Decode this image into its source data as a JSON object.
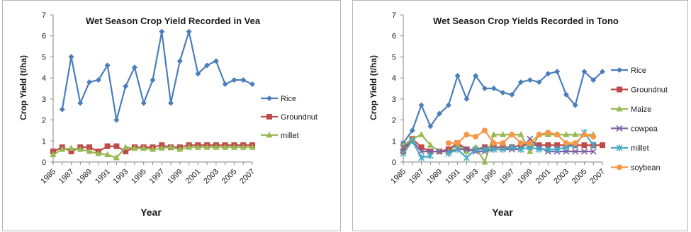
{
  "colors": {
    "rice": "#4a7ebb",
    "groundnut": "#be4b48",
    "maize": "#98b954",
    "cowpea": "#7d60a0",
    "millet_left": "#98b954",
    "millet_right": "#46aac5",
    "soybean": "#f79646"
  },
  "chart_data": [
    {
      "type": "line",
      "title": "Wet Season Crop Yield Recorded in Vea",
      "xlabel": "Year",
      "ylabel": "Crop Yield (t/ha)",
      "ylim": [
        0,
        7
      ],
      "yticks": [
        "0",
        "1",
        "2",
        "3",
        "4",
        "5",
        "6",
        "7"
      ],
      "xlim": [
        1985,
        2007
      ],
      "xticks": [
        "1985",
        "1987",
        "1989",
        "1991",
        "1993",
        "1995",
        "1997",
        "1999",
        "2001",
        "2003",
        "2005",
        "2007"
      ],
      "legend_position": "right",
      "x": [
        1985,
        1986,
        1987,
        1988,
        1989,
        1990,
        1991,
        1992,
        1993,
        1994,
        1995,
        1996,
        1997,
        1998,
        1999,
        2000,
        2001,
        2002,
        2003,
        2004,
        2005,
        2006,
        2007
      ],
      "series": [
        {
          "name": "Rice",
          "marker": "diamond",
          "color_key": "rice",
          "values": [
            null,
            2.5,
            5.0,
            2.8,
            3.8,
            3.9,
            4.6,
            2.0,
            3.6,
            4.5,
            2.8,
            3.9,
            6.2,
            2.8,
            4.8,
            6.2,
            4.2,
            4.6,
            4.8,
            3.7,
            3.9,
            3.9,
            3.7
          ]
        },
        {
          "name": "Groundnut",
          "marker": "square",
          "color_key": "groundnut",
          "values": [
            0.5,
            0.7,
            0.5,
            0.7,
            0.7,
            0.5,
            0.75,
            0.75,
            0.5,
            0.7,
            0.7,
            0.7,
            0.8,
            0.7,
            0.7,
            0.8,
            0.8,
            0.8,
            0.8,
            0.8,
            0.8,
            0.8,
            0.8
          ]
        },
        {
          "name": "millet",
          "marker": "triangle",
          "color_key": "millet_left",
          "values": [
            0.35,
            0.6,
            0.65,
            0.6,
            0.5,
            0.4,
            0.35,
            0.2,
            0.7,
            0.65,
            0.65,
            0.6,
            0.65,
            0.7,
            0.6,
            0.7,
            0.7,
            0.7,
            0.7,
            0.7,
            0.7,
            0.7,
            0.7
          ]
        }
      ]
    },
    {
      "type": "line",
      "title": "Wet Season Crop Yields Recorded in Tono",
      "xlabel": "Year",
      "ylabel": "Crop Yield (t/ha)",
      "ylim": [
        0,
        7
      ],
      "yticks": [
        "0",
        "1",
        "2",
        "3",
        "4",
        "5",
        "6",
        "7"
      ],
      "xlim": [
        1985,
        2007
      ],
      "xticks": [
        "1985",
        "1987",
        "1989",
        "1991",
        "1993",
        "1995",
        "1997",
        "1999",
        "2001",
        "2003",
        "2005",
        "2007"
      ],
      "legend_position": "right",
      "x": [
        1985,
        1986,
        1987,
        1988,
        1989,
        1990,
        1991,
        1992,
        1993,
        1994,
        1995,
        1996,
        1997,
        1998,
        1999,
        2000,
        2001,
        2002,
        2003,
        2004,
        2005,
        2006,
        2007
      ],
      "series": [
        {
          "name": "Rice",
          "marker": "diamond",
          "color_key": "rice",
          "values": [
            0.9,
            1.5,
            2.7,
            1.7,
            2.3,
            2.7,
            4.1,
            3.0,
            4.1,
            3.5,
            3.5,
            3.3,
            3.2,
            3.8,
            3.9,
            3.8,
            4.2,
            4.3,
            3.2,
            2.7,
            4.3,
            3.9,
            4.3
          ]
        },
        {
          "name": "Groundnut",
          "marker": "square",
          "color_key": "groundnut",
          "values": [
            0.5,
            1.1,
            0.7,
            0.5,
            0.5,
            0.6,
            0.9,
            0.6,
            0.6,
            0.7,
            0.7,
            0.7,
            0.7,
            0.8,
            0.8,
            0.8,
            0.8,
            0.8,
            0.8,
            0.8,
            0.8,
            0.8,
            0.8
          ]
        },
        {
          "name": "Maize",
          "marker": "triangle",
          "color_key": "maize",
          "values": [
            0.8,
            1.1,
            1.3,
            0.8,
            0.5,
            0.5,
            0.8,
            0.5,
            0.7,
            0.0,
            1.3,
            1.3,
            1.3,
            1.3,
            0.5,
            1.3,
            1.3,
            1.3,
            1.3,
            1.3,
            1.3,
            1.3,
            null
          ]
        },
        {
          "name": "cowpea",
          "marker": "x",
          "color_key": "cowpea",
          "values": [
            0.7,
            1.0,
            0.5,
            0.5,
            0.5,
            0.5,
            0.6,
            0.6,
            0.5,
            0.5,
            0.6,
            0.6,
            0.6,
            0.6,
            1.1,
            0.7,
            0.5,
            0.5,
            0.5,
            0.5,
            0.5,
            0.5,
            null
          ]
        },
        {
          "name": "millet",
          "marker": "star",
          "color_key": "millet_right",
          "values": [
            0.4,
            1.0,
            0.2,
            0.3,
            null,
            0.4,
            0.6,
            0.2,
            0.6,
            0.6,
            0.6,
            0.6,
            0.7,
            0.6,
            0.7,
            0.6,
            0.6,
            0.6,
            0.7,
            0.8,
            1.4,
            0.8,
            null
          ]
        },
        {
          "name": "soybean",
          "marker": "circle",
          "color_key": "soybean",
          "values": [
            null,
            null,
            null,
            null,
            null,
            0.9,
            0.9,
            1.3,
            1.2,
            1.5,
            0.9,
            0.9,
            1.3,
            0.9,
            0.9,
            1.3,
            1.4,
            1.3,
            0.9,
            0.9,
            1.3,
            1.2,
            null
          ]
        }
      ]
    }
  ]
}
